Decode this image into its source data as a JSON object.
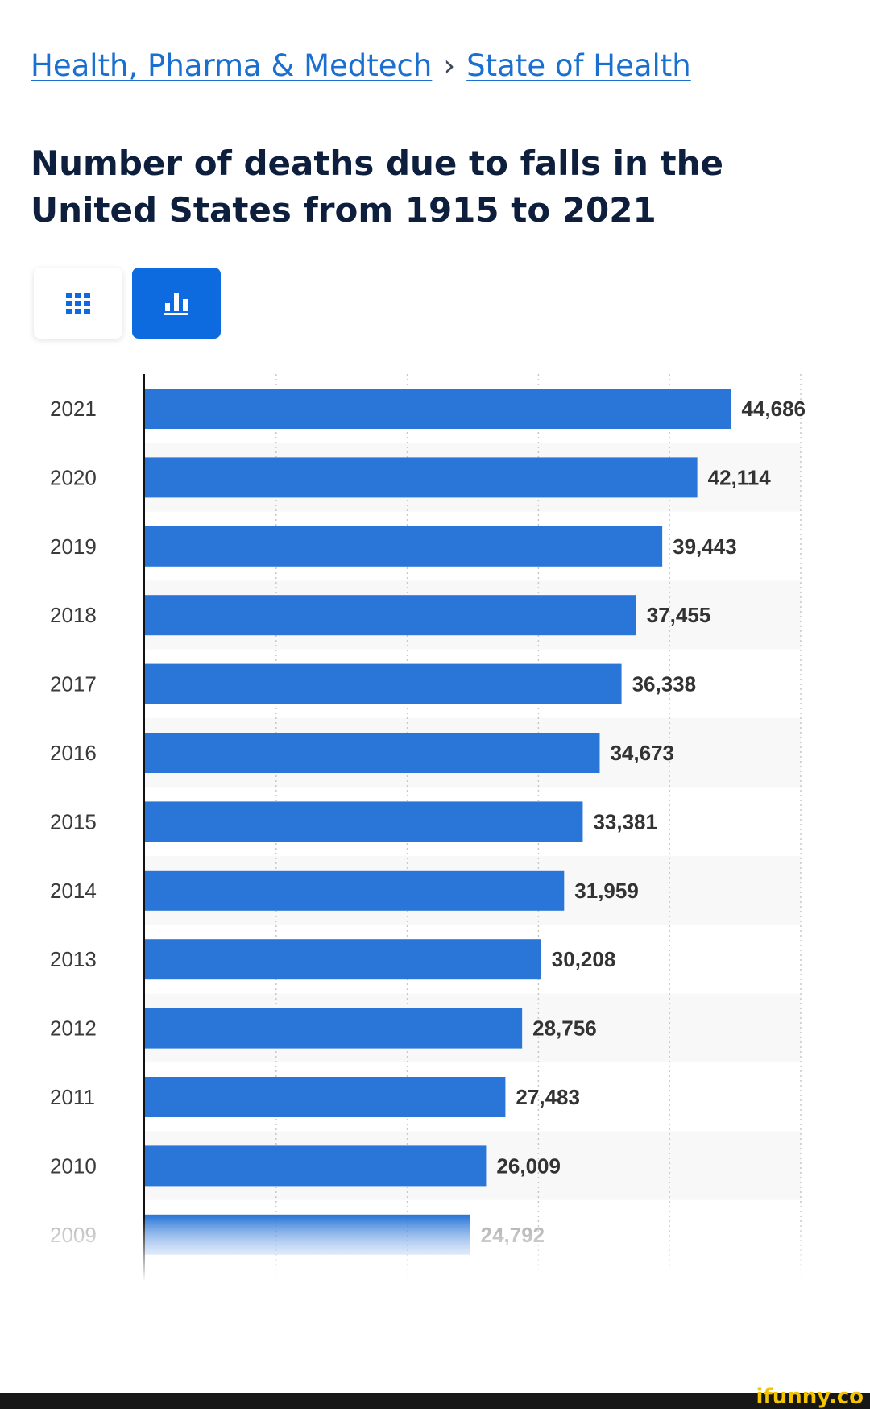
{
  "breadcrumb": {
    "parent": "Health, Pharma & Medtech",
    "separator": "›",
    "current": "State of Health"
  },
  "page_title": "Number of deaths due to falls in the United States from 1915 to 2021",
  "view_toggle": {
    "table_icon": "grid-icon",
    "chart_icon": "bar-chart-icon",
    "active": "chart"
  },
  "colors": {
    "bar": "#2a76d8",
    "link": "#1a6fd0",
    "title": "#0d1f3c",
    "active_toggle": "#0d6adf"
  },
  "chart_data": {
    "type": "bar",
    "orientation": "horizontal",
    "title": "Number of deaths due to falls in the United States from 1915 to 2021",
    "xlabel": "",
    "ylabel": "",
    "categories": [
      "2021",
      "2020",
      "2019",
      "2018",
      "2017",
      "2016",
      "2015",
      "2014",
      "2013",
      "2012",
      "2011",
      "2010",
      "2009"
    ],
    "values": [
      44686,
      42114,
      39443,
      37455,
      36338,
      34673,
      33381,
      31959,
      30208,
      28756,
      27483,
      26009,
      24792
    ],
    "value_labels": [
      "44,686",
      "42,114",
      "39,443",
      "37,455",
      "36,338",
      "34,673",
      "33,381",
      "31,959",
      "30,208",
      "28,756",
      "27,483",
      "26,009",
      "24,792"
    ],
    "xlim": [
      0,
      50000
    ],
    "grid_values": [
      10000,
      20000,
      30000,
      40000,
      50000
    ],
    "grid": true,
    "faded_last": true
  },
  "watermark": "ifunny.co"
}
